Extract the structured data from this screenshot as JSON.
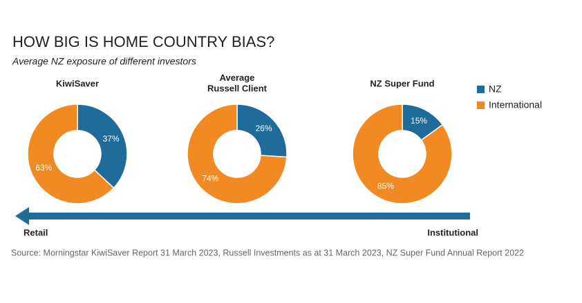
{
  "title": "HOW BIG IS HOME COUNTRY BIAS?",
  "subtitle": "Average NZ exposure of different investors",
  "chart_data": [
    {
      "type": "donut",
      "title": "KiwiSaver",
      "categories": [
        "NZ",
        "International"
      ],
      "values": [
        37,
        63
      ],
      "value_labels": [
        "37%",
        "63%"
      ],
      "colors": [
        "#1f6b9a",
        "#f28a24"
      ]
    },
    {
      "type": "donut",
      "title": "Average\nRussell Client",
      "categories": [
        "NZ",
        "International"
      ],
      "values": [
        26,
        74
      ],
      "value_labels": [
        "26%",
        "74%"
      ],
      "colors": [
        "#1f6b9a",
        "#f28a24"
      ]
    },
    {
      "type": "donut",
      "title": "NZ Super Fund",
      "categories": [
        "NZ",
        "International"
      ],
      "values": [
        15,
        85
      ],
      "value_labels": [
        "15%",
        "85%"
      ],
      "colors": [
        "#1f6b9a",
        "#f28a24"
      ],
      "legend": "right"
    }
  ],
  "arrow": {
    "end": "Retail",
    "start": "Institutional"
  },
  "source": "Source: Morningstar KiwiSaver Report 31 March 2023, Russell Investments as at 31 March 2023, NZ Super Fund Annual Report 2022"
}
